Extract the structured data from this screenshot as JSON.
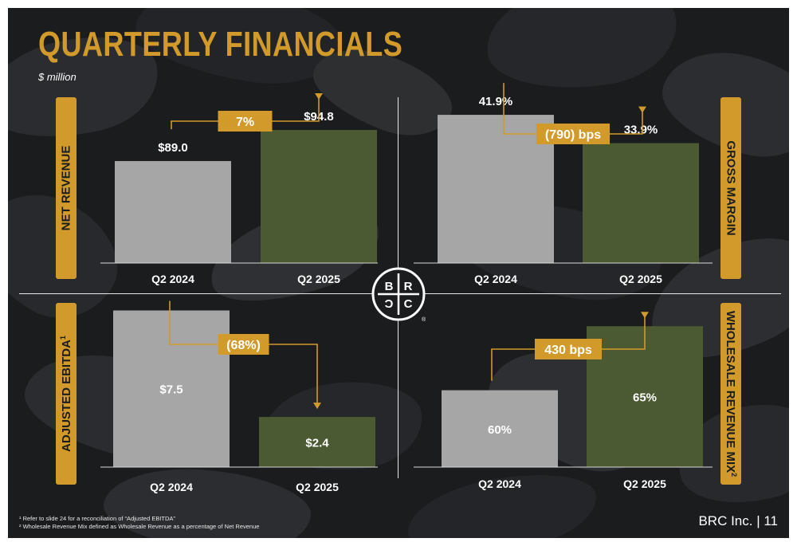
{
  "title": "QUARTERLY FINANCIALS",
  "subtitle": "$ million",
  "colors": {
    "accent": "#d29a2a",
    "prior": "#a6a6a6",
    "current": "#4b5a32",
    "text": "#ffffff"
  },
  "chart_data": [
    {
      "type": "bar",
      "title": "NET REVENUE",
      "categories": [
        "Q2 2024",
        "Q2 2025"
      ],
      "values": [
        89.0,
        94.8
      ],
      "value_labels": [
        "$89.0",
        "$94.8"
      ],
      "change_label": "7%",
      "ylim": [
        70,
        100
      ]
    },
    {
      "type": "bar",
      "title": "GROSS MARGIN",
      "categories": [
        "Q2 2024",
        "Q2 2025"
      ],
      "values": [
        41.9,
        33.9
      ],
      "value_labels": [
        "41.9%",
        "33.9%"
      ],
      "change_label": "(790) bps",
      "ylim": [
        0,
        48
      ]
    },
    {
      "type": "bar",
      "title": "ADJUSTED EBITDA",
      "title_sup": "1",
      "categories": [
        "Q2 2024",
        "Q2 2025"
      ],
      "values": [
        7.5,
        2.4
      ],
      "value_labels": [
        "$7.5",
        "$2.4"
      ],
      "change_label": "(68%)",
      "ylim": [
        0,
        7.9
      ]
    },
    {
      "type": "bar",
      "title": "WHOLESALE REVENUE MIX",
      "title_sup": "2",
      "categories": [
        "Q2 2024",
        "Q2 2025"
      ],
      "values": [
        60,
        65
      ],
      "value_labels": [
        "60%",
        "65%"
      ],
      "change_label": "430 bps",
      "ylim": [
        54,
        68
      ]
    }
  ],
  "logo": {
    "letters": [
      "B",
      "R",
      "C",
      "C"
    ],
    "registered": "®"
  },
  "footnotes": [
    "¹ Refer to slide 24 for a reconciliation of “Adjusted EBITDA”",
    "² Wholesale Revenue Mix defined as Wholesale Revenue as a percentage of Net Revenue"
  ],
  "footer": "BRC Inc. | 11"
}
